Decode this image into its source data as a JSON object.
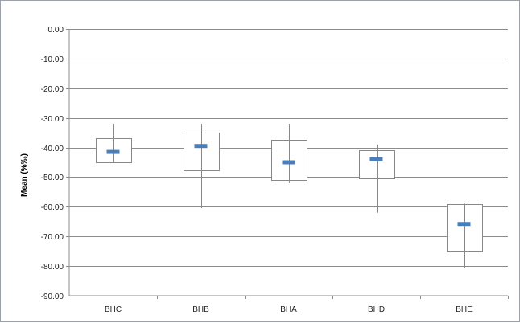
{
  "chart_data": {
    "type": "box",
    "title": "",
    "xlabel": "",
    "ylabel": "Mean (%‰)",
    "ylim": [
      -90,
      0
    ],
    "ytick_step": 10,
    "ytick_labels": [
      "0.00",
      "-10.00",
      "-20.00",
      "-30.00",
      "-40.00",
      "-50.00",
      "-60.00",
      "-70.00",
      "-80.00",
      "-90.00"
    ],
    "grid": true,
    "legend": "none",
    "categories": [
      "BHC",
      "BHB",
      "BHA",
      "BHD",
      "BHE"
    ],
    "series": [
      {
        "category": "BHC",
        "whisker_high": -32.0,
        "box_high": -37.0,
        "mean": -41.5,
        "box_low": -45.0,
        "whisker_low": -45.0
      },
      {
        "category": "BHB",
        "whisker_high": -32.0,
        "box_high": -35.0,
        "mean": -39.5,
        "box_low": -47.8,
        "whisker_low": -60.5
      },
      {
        "category": "BHA",
        "whisker_high": -32.0,
        "box_high": -37.5,
        "mean": -45.0,
        "box_low": -51.0,
        "whisker_low": -52.0
      },
      {
        "category": "BHD",
        "whisker_high": -39.0,
        "box_high": -41.0,
        "mean": -44.0,
        "box_low": -50.5,
        "whisker_low": -62.0
      },
      {
        "category": "BHE",
        "whisker_high": -59.0,
        "box_high": -59.0,
        "mean": -65.8,
        "box_low": -75.0,
        "whisker_low": -80.5
      }
    ],
    "colors": {
      "mean_marker": "#4a7ebb",
      "box": "#888888",
      "whisker": "#888888",
      "grid": "#8c8c8c"
    }
  }
}
